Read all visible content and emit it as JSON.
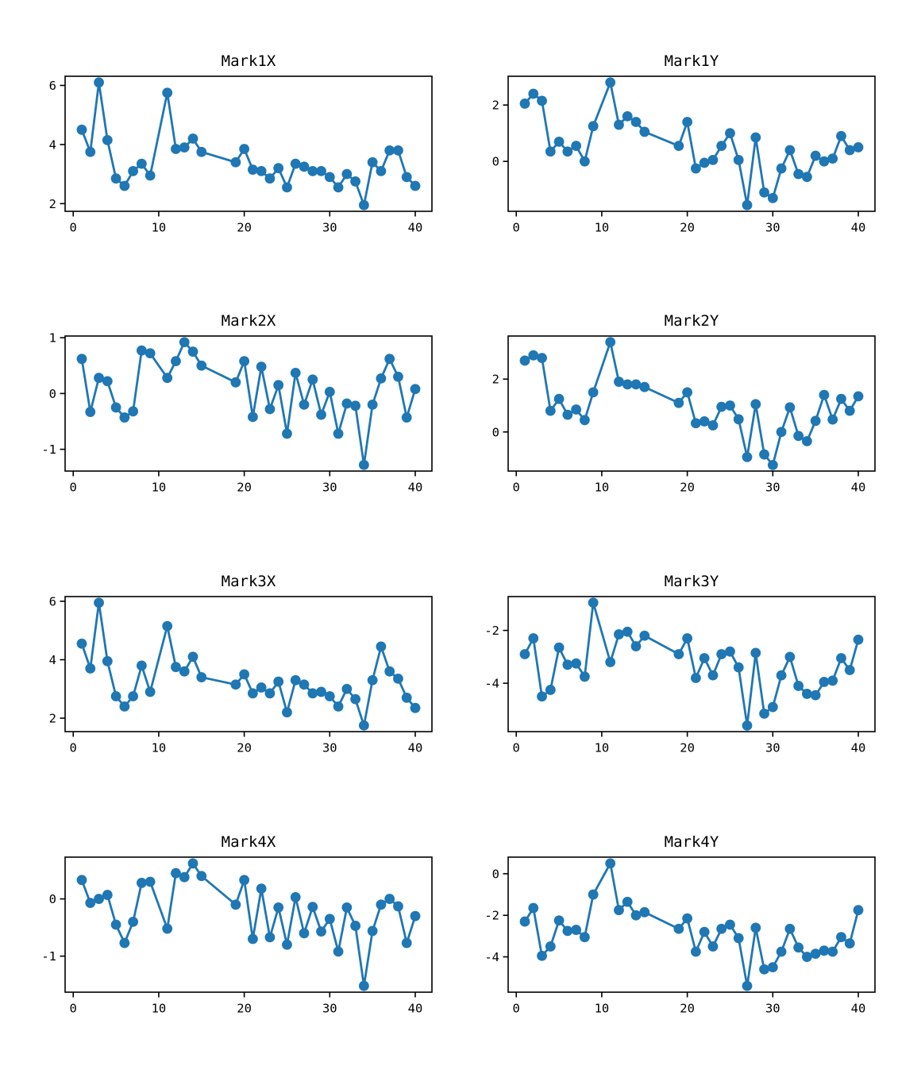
{
  "figure": {
    "background": "#ffffff",
    "series_color": "#1f77b4",
    "axis_color": "#000000",
    "marker": "circle",
    "grid": false,
    "legend": "none"
  },
  "chart_data": [
    {
      "type": "line",
      "title": "Mark1X",
      "x": [
        1,
        2,
        3,
        4,
        5,
        6,
        7,
        8,
        9,
        11,
        12,
        13,
        14,
        15,
        19,
        20,
        21,
        22,
        23,
        24,
        25,
        26,
        27,
        28,
        29,
        30,
        31,
        32,
        33,
        34,
        35,
        36,
        37,
        38,
        39,
        40
      ],
      "y": [
        4.5,
        3.75,
        6.1,
        4.15,
        2.85,
        2.6,
        3.1,
        3.35,
        2.95,
        5.75,
        3.85,
        3.9,
        4.2,
        3.75,
        3.4,
        3.85,
        3.15,
        3.1,
        2.85,
        3.2,
        2.55,
        3.35,
        3.25,
        3.1,
        3.1,
        2.9,
        2.55,
        3.0,
        2.75,
        1.95,
        3.4,
        3.1,
        3.8,
        3.8,
        2.9,
        2.6
      ],
      "xlim": [
        -0.95,
        41.95
      ],
      "ylim": [
        1.74,
        6.31
      ],
      "x_ticks": [
        0,
        10,
        20,
        30,
        40
      ],
      "y_ticks": [
        2,
        4,
        6
      ],
      "color": "#1f77b4"
    },
    {
      "type": "line",
      "title": "Mark1Y",
      "x": [
        1,
        2,
        3,
        4,
        5,
        6,
        7,
        8,
        9,
        11,
        12,
        13,
        14,
        15,
        19,
        20,
        21,
        22,
        23,
        24,
        25,
        26,
        27,
        28,
        29,
        30,
        31,
        32,
        33,
        34,
        35,
        36,
        37,
        38,
        39,
        40
      ],
      "y": [
        2.05,
        2.4,
        2.15,
        0.35,
        0.7,
        0.35,
        0.55,
        0.0,
        1.25,
        2.8,
        1.3,
        1.6,
        1.4,
        1.05,
        0.55,
        1.4,
        -0.25,
        -0.05,
        0.05,
        0.55,
        1.0,
        0.05,
        -1.55,
        0.85,
        -1.1,
        -1.3,
        -0.25,
        0.4,
        -0.45,
        -0.55,
        0.2,
        0.0,
        0.1,
        0.9,
        0.4,
        0.5
      ],
      "xlim": [
        -0.95,
        41.95
      ],
      "ylim": [
        -1.77,
        3.02
      ],
      "x_ticks": [
        0,
        10,
        20,
        30,
        40
      ],
      "y_ticks": [
        0,
        2
      ],
      "color": "#1f77b4"
    },
    {
      "type": "line",
      "title": "Mark2X",
      "x": [
        1,
        2,
        3,
        4,
        5,
        6,
        7,
        8,
        9,
        11,
        12,
        13,
        14,
        15,
        19,
        20,
        21,
        22,
        23,
        24,
        25,
        26,
        27,
        28,
        29,
        30,
        31,
        32,
        33,
        34,
        35,
        36,
        37,
        38,
        39,
        40
      ],
      "y": [
        0.62,
        -0.33,
        0.28,
        0.22,
        -0.25,
        -0.43,
        -0.32,
        0.77,
        0.72,
        0.28,
        0.58,
        0.92,
        0.75,
        0.5,
        0.2,
        0.58,
        -0.42,
        0.48,
        -0.28,
        0.15,
        -0.72,
        0.37,
        -0.2,
        0.25,
        -0.38,
        0.03,
        -0.72,
        -0.18,
        -0.22,
        -1.28,
        -0.2,
        0.27,
        0.62,
        0.3,
        -0.43,
        0.08
      ],
      "xlim": [
        -0.95,
        41.95
      ],
      "ylim": [
        -1.39,
        1.03
      ],
      "x_ticks": [
        0,
        10,
        20,
        30,
        40
      ],
      "y_ticks": [
        -1,
        0,
        1
      ],
      "color": "#1f77b4"
    },
    {
      "type": "line",
      "title": "Mark2Y",
      "x": [
        1,
        2,
        3,
        4,
        5,
        6,
        7,
        8,
        9,
        11,
        12,
        13,
        14,
        15,
        19,
        20,
        21,
        22,
        23,
        24,
        25,
        26,
        27,
        28,
        29,
        30,
        31,
        32,
        33,
        34,
        35,
        36,
        37,
        38,
        39,
        40
      ],
      "y": [
        2.7,
        2.9,
        2.8,
        0.8,
        1.25,
        0.65,
        0.85,
        0.45,
        1.5,
        3.4,
        1.9,
        1.8,
        1.8,
        1.7,
        1.1,
        1.5,
        0.33,
        0.4,
        0.25,
        0.95,
        1.0,
        0.48,
        -0.95,
        1.05,
        -0.85,
        -1.25,
        0.0,
        0.93,
        -0.15,
        -0.35,
        0.42,
        1.4,
        0.47,
        1.25,
        0.8,
        1.35
      ],
      "xlim": [
        -0.95,
        41.95
      ],
      "ylim": [
        -1.48,
        3.63
      ],
      "x_ticks": [
        0,
        10,
        20,
        30,
        40
      ],
      "y_ticks": [
        0,
        2
      ],
      "color": "#1f77b4"
    },
    {
      "type": "line",
      "title": "Mark3X",
      "x": [
        1,
        2,
        3,
        4,
        5,
        6,
        7,
        8,
        9,
        11,
        12,
        13,
        14,
        15,
        19,
        20,
        21,
        22,
        23,
        24,
        25,
        26,
        27,
        28,
        29,
        30,
        31,
        32,
        33,
        34,
        35,
        36,
        37,
        38,
        39,
        40
      ],
      "y": [
        4.55,
        3.7,
        5.95,
        3.95,
        2.75,
        2.4,
        2.75,
        3.8,
        2.9,
        5.15,
        3.75,
        3.6,
        4.1,
        3.4,
        3.15,
        3.5,
        2.85,
        3.05,
        2.85,
        3.25,
        2.2,
        3.3,
        3.15,
        2.85,
        2.9,
        2.75,
        2.4,
        3.0,
        2.65,
        1.75,
        3.3,
        4.45,
        3.6,
        3.35,
        2.7,
        2.35
      ],
      "xlim": [
        -0.95,
        41.95
      ],
      "ylim": [
        1.54,
        6.16
      ],
      "x_ticks": [
        0,
        10,
        20,
        30,
        40
      ],
      "y_ticks": [
        2,
        4,
        6
      ],
      "color": "#1f77b4"
    },
    {
      "type": "line",
      "title": "Mark3Y",
      "x": [
        1,
        2,
        3,
        4,
        5,
        6,
        7,
        8,
        9,
        11,
        12,
        13,
        14,
        15,
        19,
        20,
        21,
        22,
        23,
        24,
        25,
        26,
        27,
        28,
        29,
        30,
        31,
        32,
        33,
        34,
        35,
        36,
        37,
        38,
        39,
        40
      ],
      "y": [
        -2.9,
        -2.3,
        -4.5,
        -4.25,
        -2.65,
        -3.3,
        -3.25,
        -3.75,
        -0.95,
        -3.2,
        -2.15,
        -2.05,
        -2.6,
        -2.2,
        -2.9,
        -2.3,
        -3.8,
        -3.05,
        -3.7,
        -2.9,
        -2.8,
        -3.4,
        -5.6,
        -2.85,
        -5.15,
        -4.9,
        -3.7,
        -3.0,
        -4.1,
        -4.4,
        -4.45,
        -3.95,
        -3.9,
        -3.05,
        -3.5,
        -2.35
      ],
      "xlim": [
        -0.95,
        41.95
      ],
      "ylim": [
        -5.83,
        -0.72
      ],
      "x_ticks": [
        0,
        10,
        20,
        30,
        40
      ],
      "y_ticks": [
        -4,
        -2
      ],
      "color": "#1f77b4"
    },
    {
      "type": "line",
      "title": "Mark4X",
      "x": [
        1,
        2,
        3,
        4,
        5,
        6,
        7,
        8,
        9,
        11,
        12,
        13,
        14,
        15,
        19,
        20,
        21,
        22,
        23,
        24,
        25,
        26,
        27,
        28,
        29,
        30,
        31,
        32,
        33,
        34,
        35,
        36,
        37,
        38,
        39,
        40
      ],
      "y": [
        0.33,
        -0.07,
        0.0,
        0.07,
        -0.45,
        -0.77,
        -0.4,
        0.28,
        0.3,
        -0.52,
        0.45,
        0.38,
        0.62,
        0.4,
        -0.1,
        0.33,
        -0.7,
        0.18,
        -0.67,
        -0.15,
        -0.8,
        0.03,
        -0.6,
        -0.14,
        -0.57,
        -0.35,
        -0.92,
        -0.15,
        -0.47,
        -1.52,
        -0.56,
        -0.1,
        0.0,
        -0.13,
        -0.77,
        -0.3
      ],
      "xlim": [
        -0.95,
        41.95
      ],
      "ylim": [
        -1.63,
        0.73
      ],
      "x_ticks": [
        0,
        10,
        20,
        30,
        40
      ],
      "y_ticks": [
        -1,
        0
      ],
      "color": "#1f77b4"
    },
    {
      "type": "line",
      "title": "Mark4Y",
      "x": [
        1,
        2,
        3,
        4,
        5,
        6,
        7,
        8,
        9,
        11,
        12,
        13,
        14,
        15,
        19,
        20,
        21,
        22,
        23,
        24,
        25,
        26,
        27,
        28,
        29,
        30,
        31,
        32,
        33,
        34,
        35,
        36,
        37,
        38,
        39,
        40
      ],
      "y": [
        -2.3,
        -1.65,
        -3.95,
        -3.5,
        -2.25,
        -2.75,
        -2.7,
        -3.05,
        -1.0,
        0.5,
        -1.75,
        -1.35,
        -2.0,
        -1.85,
        -2.65,
        -2.15,
        -3.75,
        -2.8,
        -3.5,
        -2.65,
        -2.45,
        -3.1,
        -5.4,
        -2.6,
        -4.6,
        -4.5,
        -3.75,
        -2.65,
        -3.55,
        -4.0,
        -3.85,
        -3.7,
        -3.75,
        -3.05,
        -3.35,
        -1.75
      ],
      "xlim": [
        -0.95,
        41.95
      ],
      "ylim": [
        -5.7,
        0.8
      ],
      "x_ticks": [
        0,
        10,
        20,
        30,
        40
      ],
      "y_ticks": [
        -4,
        -2,
        0
      ],
      "color": "#1f77b4"
    }
  ]
}
